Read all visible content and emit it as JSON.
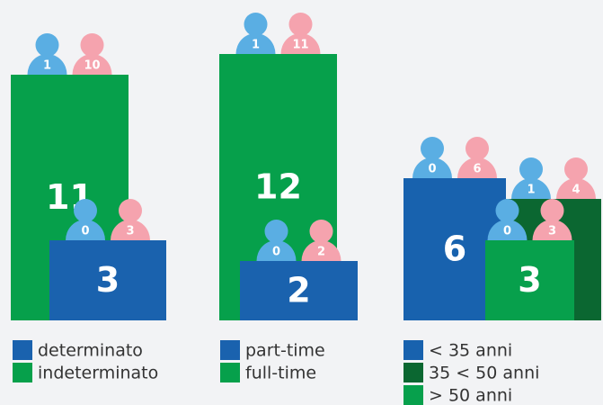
{
  "chart_data": [
    {
      "type": "bar",
      "categories": [
        "determinato",
        "indeterminato"
      ],
      "values": [
        3,
        11
      ],
      "colors": [
        "#1a62ae",
        "#06a04b"
      ],
      "men": [
        0,
        1
      ],
      "women": [
        3,
        10
      ]
    },
    {
      "type": "bar",
      "categories": [
        "part-time",
        "full-time"
      ],
      "values": [
        2,
        12
      ],
      "colors": [
        "#1a62ae",
        "#06a04b"
      ],
      "men": [
        0,
        1
      ],
      "women": [
        2,
        11
      ]
    },
    {
      "type": "bar",
      "categories": [
        "< 35 anni",
        "35 < 50 anni",
        "> 50 anni"
      ],
      "values": [
        6,
        5,
        3
      ],
      "colors": [
        "#1862ae",
        "#0b6731",
        "#07a04c"
      ],
      "men": [
        0,
        1,
        0
      ],
      "women": [
        6,
        4,
        3
      ]
    }
  ]
}
